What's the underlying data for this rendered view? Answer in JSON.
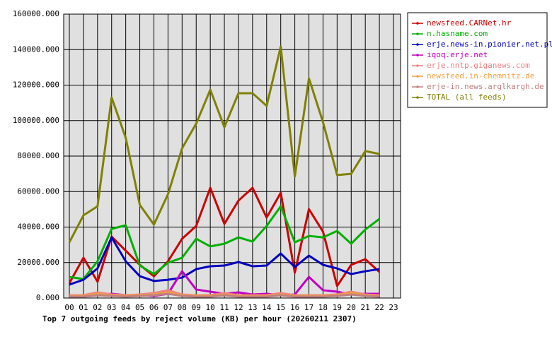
{
  "chart_data": {
    "type": "line",
    "title": "Top 7 outgoing feeds by reject volume (KB) per hour (20260211 2307)",
    "categories": [
      "00",
      "01",
      "02",
      "03",
      "04",
      "05",
      "06",
      "07",
      "08",
      "09",
      "10",
      "11",
      "12",
      "13",
      "14",
      "15",
      "16",
      "17",
      "18",
      "19",
      "20",
      "21",
      "22",
      "23"
    ],
    "ylim": [
      0,
      160000
    ],
    "yticks": [
      {
        "value": 0,
        "label": "0.000"
      },
      {
        "value": 20000,
        "label": "20000.000"
      },
      {
        "value": 40000,
        "label": "40000.000"
      },
      {
        "value": 60000,
        "label": "60000.000"
      },
      {
        "value": 80000,
        "label": "80000.000"
      },
      {
        "value": 100000,
        "label": "100000.000"
      },
      {
        "value": 120000,
        "label": "120000.000"
      },
      {
        "value": 140000,
        "label": "140000.000"
      },
      {
        "value": 160000,
        "label": "160000.000"
      }
    ],
    "grid": true,
    "series": [
      {
        "name": "newsfeed.CARNet.hr",
        "color": "#cc0000",
        "values": [
          8400,
          22700,
          9200,
          34600,
          26700,
          18700,
          12300,
          20700,
          33400,
          40600,
          62100,
          41800,
          54900,
          62100,
          45400,
          59300,
          14300,
          50100,
          37400,
          6800,
          18700,
          21900,
          14700,
          null
        ]
      },
      {
        "name": "n.hasname.com",
        "color": "#00b000",
        "values": [
          11900,
          10700,
          20700,
          39000,
          41000,
          18300,
          13500,
          19900,
          22700,
          33400,
          29100,
          30600,
          34200,
          31800,
          40600,
          51700,
          31400,
          35000,
          34200,
          37800,
          30600,
          38600,
          44600,
          null
        ]
      },
      {
        "name": "erje.news-in.pionier.net.pl",
        "color": "#0000c0",
        "values": [
          7600,
          10300,
          16700,
          34200,
          20700,
          12300,
          9600,
          10300,
          11500,
          16300,
          17900,
          18300,
          20300,
          17900,
          18300,
          25100,
          17500,
          23900,
          18700,
          16700,
          13500,
          15100,
          16300,
          null
        ]
      },
      {
        "name": "iqoq.erje.net",
        "color": "#c000c0",
        "values": [
          800,
          800,
          1600,
          2400,
          1600,
          1600,
          1200,
          2400,
          15100,
          4800,
          3600,
          2400,
          3200,
          2000,
          2400,
          1600,
          2000,
          11900,
          4400,
          3600,
          2000,
          2400,
          2400,
          null
        ]
      },
      {
        "name": "erje.nntp.giganews.com",
        "color": "#f08080",
        "values": [
          1600,
          1600,
          3200,
          2000,
          1600,
          2000,
          2800,
          4400,
          2000,
          1600,
          1600,
          2800,
          1600,
          1600,
          1600,
          2800,
          1600,
          1600,
          1600,
          2000,
          3600,
          2000,
          1600,
          null
        ]
      },
      {
        "name": "newsfeed.in-chemnitz.de",
        "color": "#f0a040",
        "values": [
          1200,
          1200,
          2400,
          1600,
          1200,
          1600,
          2000,
          3200,
          1600,
          1200,
          1200,
          2000,
          1200,
          1200,
          1200,
          2000,
          1200,
          1200,
          1200,
          1600,
          2800,
          1600,
          1200,
          null
        ]
      },
      {
        "name": "erje-in.news.arglkargh.de",
        "color": "#c08080",
        "values": [
          800,
          800,
          1600,
          1200,
          800,
          1200,
          1600,
          2400,
          1200,
          800,
          800,
          1600,
          800,
          800,
          800,
          1600,
          800,
          800,
          800,
          1200,
          2000,
          1200,
          800,
          null
        ]
      },
      {
        "name": "TOTAL (all feeds)",
        "color": "#808000",
        "values": [
          31400,
          46600,
          51700,
          113000,
          90300,
          52500,
          41400,
          58500,
          84400,
          98300,
          117400,
          96300,
          115400,
          115400,
          108300,
          141700,
          68500,
          123800,
          99100,
          69300,
          70000,
          82800,
          81200,
          null
        ]
      }
    ]
  }
}
